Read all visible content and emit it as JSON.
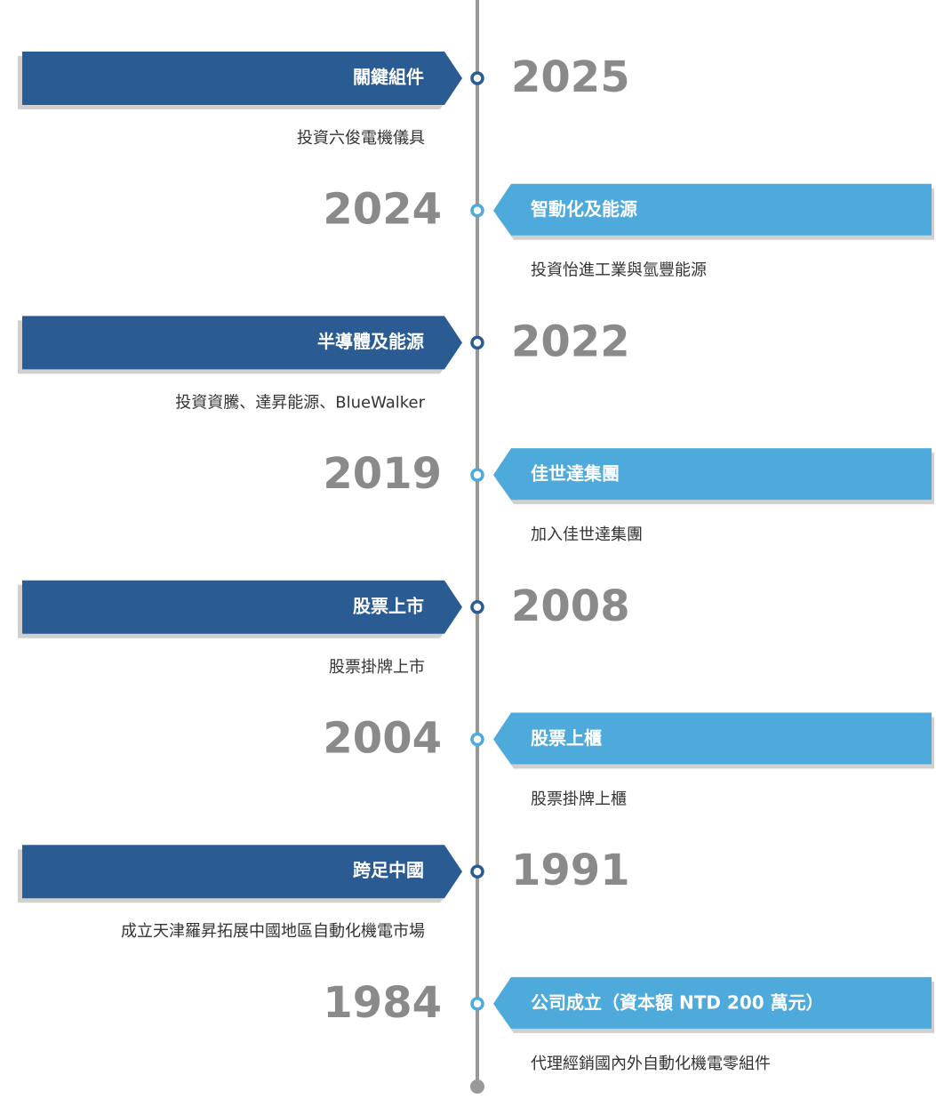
{
  "items": [
    {
      "year": "2025",
      "title": "關鍵組件",
      "description": "投資六俊電機儀具"
    },
    {
      "year": "2024",
      "title": "智動化及能源",
      "description": "投資怡進工業與氫豐能源"
    },
    {
      "year": "2022",
      "title": "半導體及能源",
      "description": "投資資騰、達昇能源、BlueWalker"
    },
    {
      "year": "2019",
      "title": "佳世達集團",
      "description": "加入佳世達集團"
    },
    {
      "year": "2008",
      "title": "股票上市",
      "description": "股票掛牌上市"
    },
    {
      "year": "2004",
      "title": "股票上櫃",
      "description": "股票掛牌上櫃"
    },
    {
      "year": "1991",
      "title": "跨足中國",
      "description": "成立天津羅昇拓展中國地區自動化機電市場"
    },
    {
      "year": "1984",
      "title": "公司成立（資本額 NTD 200 萬元）",
      "description": "代理經銷國內外自動化機電零組件"
    }
  ]
}
